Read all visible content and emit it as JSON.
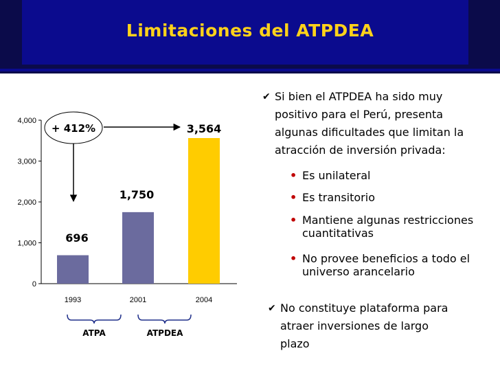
{
  "title": "Limitaciones del ATPDEA",
  "chart_data": {
    "type": "bar",
    "categories": [
      "1993",
      "2001",
      "2004"
    ],
    "values": [
      696,
      1750,
      3564
    ],
    "data_labels": [
      "696",
      "1,750",
      "3,564"
    ],
    "colors": [
      "#6b6b9e",
      "#6b6b9e",
      "#ffcc00"
    ],
    "ylim": [
      0,
      4000
    ],
    "yticks": [
      {
        "value": 0,
        "label": "0"
      },
      {
        "value": 1000,
        "label": "1,000"
      },
      {
        "value": 2000,
        "label": "2,000"
      },
      {
        "value": 3000,
        "label": "3,000"
      },
      {
        "value": 4000,
        "label": "4,000"
      }
    ],
    "growth_annotation": "+ 412%",
    "periods": [
      {
        "label": "ATPA",
        "categories": [
          "1993"
        ]
      },
      {
        "label": "ATPDEA",
        "categories": [
          "2001",
          "2004"
        ]
      }
    ],
    "grid": false
  },
  "bullets": {
    "intro": "Si bien el ATPDEA ha sido muy positivo para el Perú, presenta algunas dificultades que limitan la atracción de inversión privada:",
    "items": [
      "Es unilateral",
      "Es transitorio",
      "Mantiene algunas restricciones cuantitativas",
      "No provee beneficios a todo el universo arancelario"
    ],
    "closing": "No constituye plataforma para atraer inversiones de largo plazo"
  },
  "icons": {
    "bullet_check": "check-icon",
    "bullet_dot": "dot-icon"
  }
}
